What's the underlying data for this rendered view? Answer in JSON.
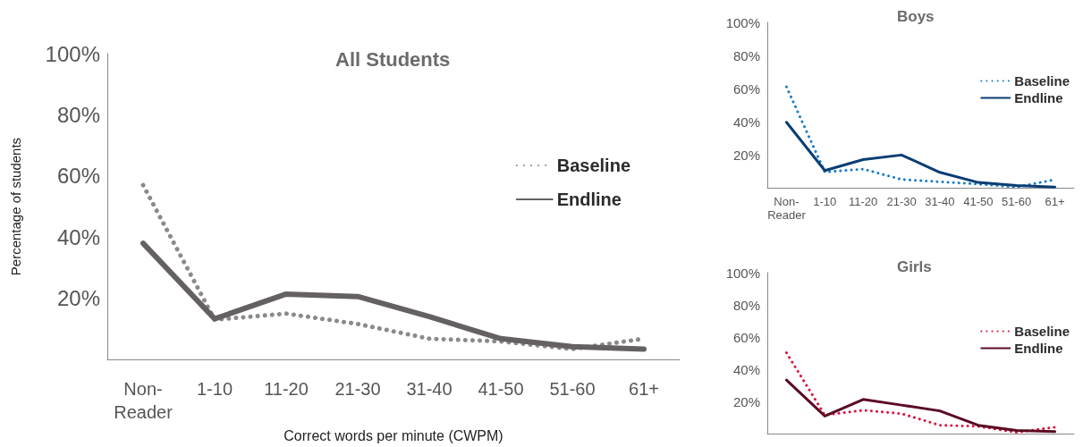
{
  "chart_data": [
    {
      "type": "line",
      "title": "All Students",
      "xlabel": "Correct words per minute (CWPM)",
      "ylabel": "Percentage of students",
      "categories": [
        "Non-\nReader",
        "1-10",
        "11-20",
        "21-30",
        "31-40",
        "41-50",
        "51-60",
        "61+"
      ],
      "series": [
        {
          "name": "Baseline",
          "color": "#8a8a8a",
          "line_style": "dotted",
          "values": [
            57,
            13,
            15,
            11.6,
            6.8,
            5.9,
            3.4,
            6.8
          ]
        },
        {
          "name": "Endline",
          "color": "#656161",
          "line_style": "solid",
          "values": [
            38,
            13.3,
            21.4,
            20.6,
            14,
            6.8,
            4.2,
            3.4
          ]
        }
      ],
      "ylim": [
        0,
        100
      ],
      "yticks": [
        {
          "value": 20,
          "label": "20%"
        },
        {
          "value": 40,
          "label": "40%"
        },
        {
          "value": 60,
          "label": "60%"
        },
        {
          "value": 80,
          "label": "80%"
        },
        {
          "value": 100,
          "label": "100%"
        }
      ],
      "grid": false,
      "legend": "right",
      "marker": "none"
    },
    {
      "type": "line",
      "title": "Boys",
      "categories": [
        "Non-\nReader",
        "1-10",
        "11-20",
        "21-30",
        "31-40",
        "41-50",
        "51-60",
        "61+"
      ],
      "series": [
        {
          "name": "Baseline",
          "color": "#1a7dc8",
          "line_style": "dotted",
          "values": [
            61,
            9.5,
            11.3,
            5,
            3.6,
            2.2,
            0.4,
            4.9
          ]
        },
        {
          "name": "Endline",
          "color": "#0b3d73",
          "line_style": "solid",
          "values": [
            39.6,
            10.4,
            17,
            19.8,
            9.3,
            3.2,
            1.3,
            0.4
          ]
        }
      ],
      "ylim": [
        0,
        100
      ],
      "yticks": [
        {
          "value": 20,
          "label": "20%"
        },
        {
          "value": 40,
          "label": "40%"
        },
        {
          "value": 60,
          "label": "60%"
        },
        {
          "value": 80,
          "label": "80%"
        },
        {
          "value": 100,
          "label": "100%"
        }
      ],
      "grid": false,
      "legend": "top right",
      "marker": "none"
    },
    {
      "type": "line",
      "title": "Girls",
      "categories": [
        null,
        null,
        null,
        null,
        null,
        null,
        null,
        null
      ],
      "series": [
        {
          "name": "Baseline",
          "color": "#d8163f",
          "line_style": "dotted",
          "values": [
            50.2,
            11.5,
            14.5,
            12.4,
            5.2,
            4.5,
            0.8,
            4
          ]
        },
        {
          "name": "Endline",
          "color": "#5c0a23",
          "line_style": "solid",
          "values": [
            33.3,
            10.9,
            21.2,
            17.7,
            14.1,
            5.2,
            2,
            1.2
          ]
        }
      ],
      "ylim": [
        0,
        100
      ],
      "yticks": [
        {
          "value": 20,
          "label": "20%"
        },
        {
          "value": 40,
          "label": "40%"
        },
        {
          "value": 60,
          "label": "60%"
        },
        {
          "value": 80,
          "label": "80%"
        },
        {
          "value": 100,
          "label": "100%"
        }
      ],
      "grid": false,
      "legend": "top right",
      "marker": "none"
    }
  ]
}
